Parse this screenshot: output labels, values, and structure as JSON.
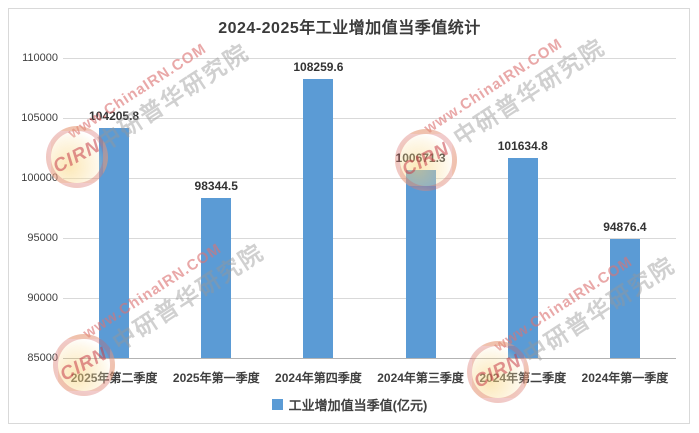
{
  "chart_data": {
    "type": "bar",
    "title": "2024-2025年工业增加值当季值统计",
    "categories": [
      "2025年第二季度",
      "2025年第一季度",
      "2024年第四季度",
      "2024年第三季度",
      "2024年第二季度",
      "2024年第一季度"
    ],
    "series": [
      {
        "name": "工业增加值当季值(亿元)",
        "values": [
          104205.8,
          98344.5,
          108259.6,
          100671.3,
          101634.8,
          94876.4
        ]
      }
    ],
    "ylabel": "",
    "xlabel": "",
    "ylim": [
      85000,
      110000
    ],
    "yticks": [
      85000,
      90000,
      95000,
      100000,
      105000,
      110000
    ],
    "grid": true,
    "legend_position": "bottom",
    "bar_color": "#5B9BD5"
  },
  "legend": {
    "label": "工业增加值当季值(亿元)",
    "swatch_color": "#5B9BD5"
  },
  "colors": {
    "gridline": "#d9d9d9",
    "axis_text": "#404040",
    "title_text": "#3a3a3a"
  },
  "watermark": {
    "url_text": "www.ChinaIRN.COM",
    "brand_text": "中研普华研究院",
    "logo_text": "CIRN"
  }
}
